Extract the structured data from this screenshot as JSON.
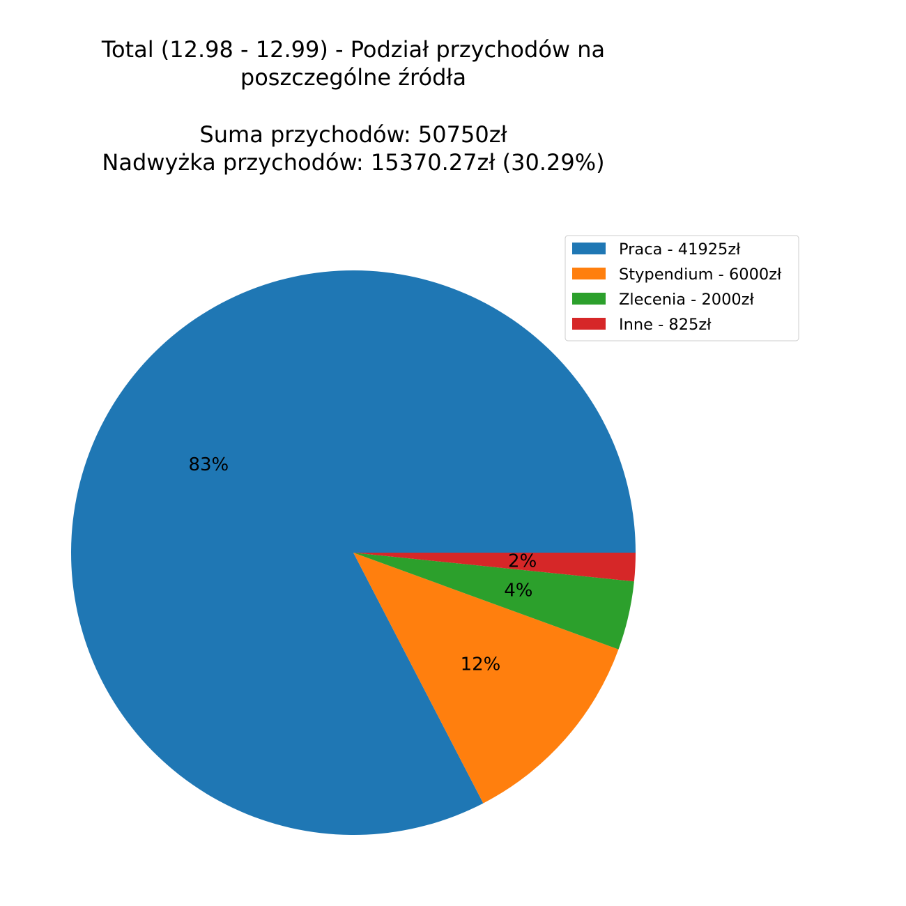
{
  "chart_data": {
    "type": "pie",
    "title_lines": [
      "Total (12.98 - 12.99) - Podział przychodów na",
      "poszczególne źródła",
      "",
      "Suma przychodów: 50750zł",
      "Nadwyżka przychodów: 15370.27zł  (30.29%)"
    ],
    "slices": [
      {
        "label": "Praca - 41925zł",
        "value": 41925,
        "pct_label": "83%",
        "color": "#1f77b4"
      },
      {
        "label": "Stypendium - 6000zł",
        "value": 6000,
        "pct_label": "12%",
        "color": "#ff7f0e"
      },
      {
        "label": "Zlecenia - 2000zł",
        "value": 2000,
        "pct_label": "4%",
        "color": "#2ca02c"
      },
      {
        "label": "Inne - 825zł",
        "value": 825,
        "pct_label": "2%",
        "color": "#d62728"
      }
    ],
    "legend_position": "upper-right"
  }
}
